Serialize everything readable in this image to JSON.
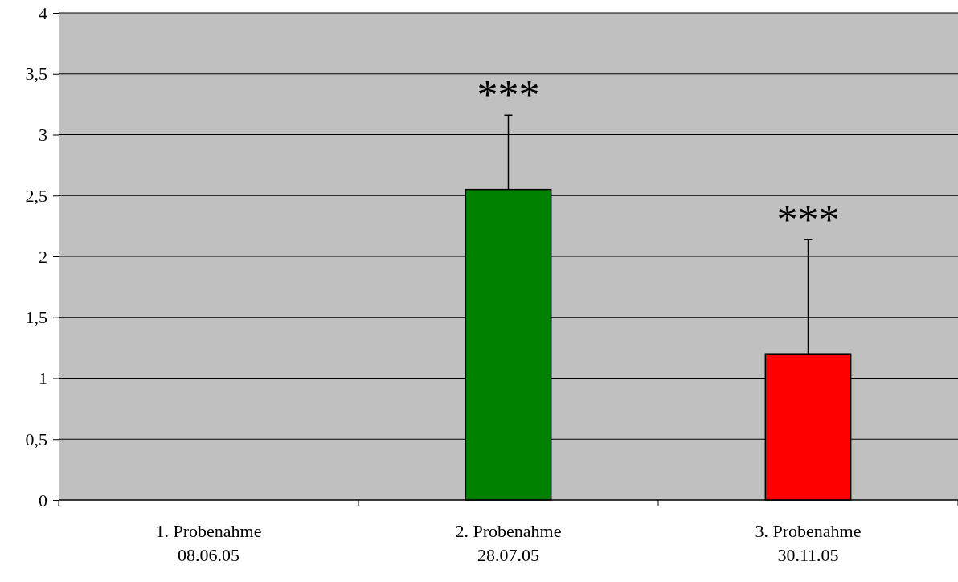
{
  "chart_data": {
    "type": "bar",
    "categories": [
      "1. Probenahme\n08.06.05",
      "2. Probenahme\n28.07.05",
      "3. Probenahme\n30.11.05"
    ],
    "values": [
      0,
      2.55,
      1.2
    ],
    "colors": [
      "#000000",
      "#008000",
      "#ff0000"
    ],
    "errors": [
      null,
      [
        2.55,
        3.16
      ],
      [
        1.2,
        2.14
      ]
    ],
    "ylim": [
      0,
      4
    ],
    "yticks": [
      0,
      {
        "value": 0.5,
        "label": "0,5"
      },
      1,
      {
        "value": 1.5,
        "label": "1,5"
      },
      2,
      {
        "value": 2.5,
        "label": "2,5"
      },
      3,
      {
        "value": 3.5,
        "label": "3,5"
      },
      4
    ],
    "grid": "y",
    "annotations": [
      "***",
      "***"
    ]
  }
}
